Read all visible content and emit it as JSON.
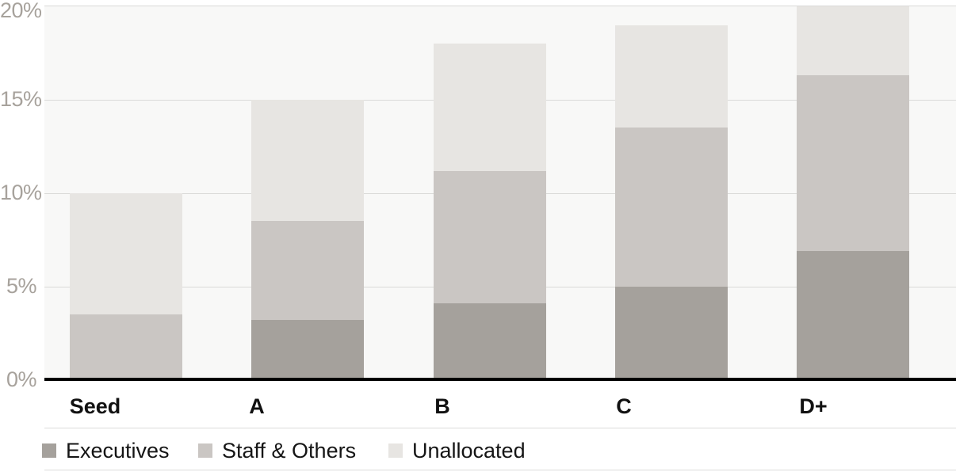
{
  "chart_data": {
    "type": "bar",
    "stacked": true,
    "title": "",
    "xlabel": "",
    "ylabel": "",
    "categories": [
      "Seed",
      "A",
      "B",
      "C",
      "D+"
    ],
    "series": [
      {
        "name": "Executives",
        "color": "#a5a19c",
        "values": [
          0,
          3.2,
          4.1,
          5.0,
          6.9
        ]
      },
      {
        "name": "Staff & Others",
        "color": "#cac6c3",
        "values": [
          3.5,
          5.3,
          7.1,
          8.5,
          9.4
        ]
      },
      {
        "name": "Unallocated",
        "color": "#e7e5e2",
        "values": [
          6.5,
          6.5,
          6.8,
          5.5,
          3.7
        ]
      }
    ],
    "stack_totals_pct": [
      10,
      15,
      18,
      19,
      20
    ],
    "ylim": [
      0,
      20
    ],
    "yticks": [
      {
        "value": 0,
        "label": "0%"
      },
      {
        "value": 5,
        "label": "5%"
      },
      {
        "value": 10,
        "label": "10%"
      },
      {
        "value": 15,
        "label": "15%"
      },
      {
        "value": 20,
        "label": "20%"
      }
    ],
    "grid": true,
    "legend_position": "bottom",
    "colors": {
      "plot_background": "#f8f8f7",
      "gridline": "#dadad8",
      "baseline": "#000000",
      "ytick_text": "#a7a29c",
      "xlabel_text": "#111111",
      "legend_text": "#151515",
      "legend_rule": "#dcdcda",
      "page_background": "#ffffff"
    }
  }
}
